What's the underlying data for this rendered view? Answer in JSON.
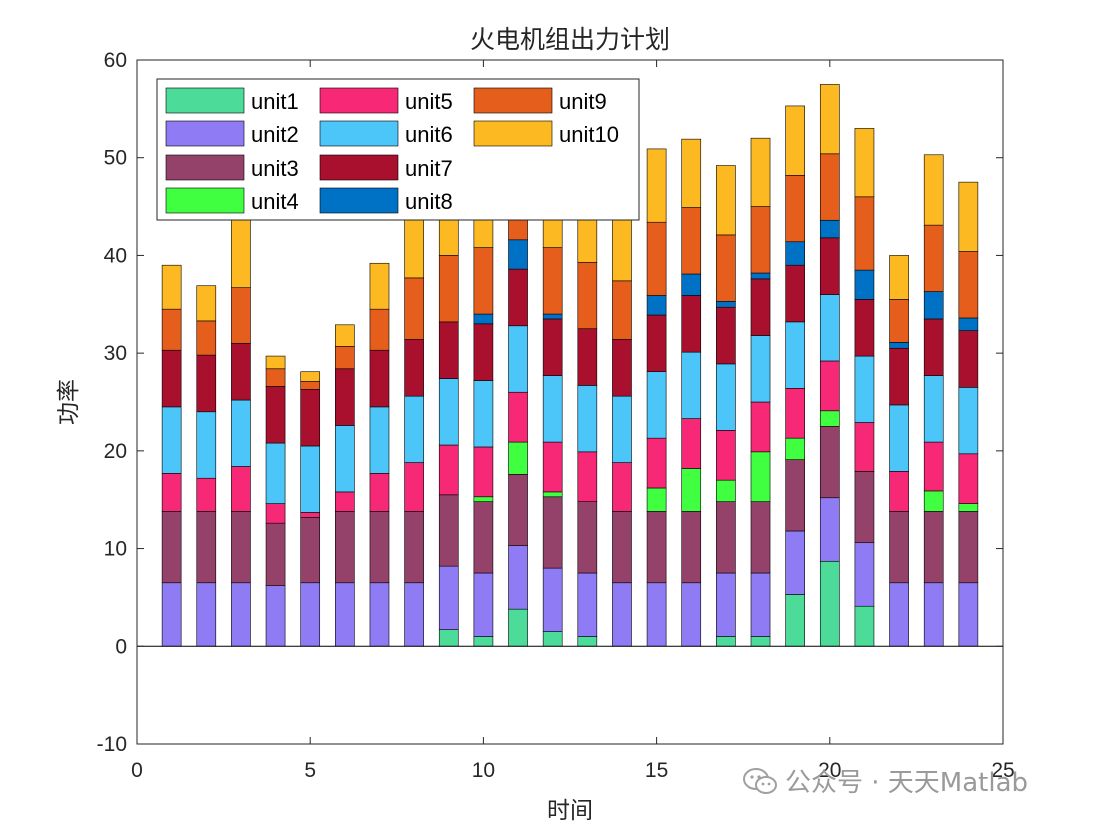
{
  "chart_data": {
    "type": "bar",
    "stacked": true,
    "title": "火电机组出力计划",
    "xlabel": "时间",
    "ylabel": "功率",
    "xlim": [
      0,
      25
    ],
    "ylim": [
      -10,
      60
    ],
    "xticks": [
      0,
      5,
      10,
      15,
      20,
      25
    ],
    "yticks": [
      -10,
      0,
      10,
      20,
      30,
      40,
      50,
      60
    ],
    "legend_position": "top-left",
    "legend_columns": 3,
    "categories": [
      1,
      2,
      3,
      4,
      5,
      6,
      7,
      8,
      9,
      10,
      11,
      12,
      13,
      14,
      15,
      16,
      17,
      18,
      19,
      20,
      21,
      22,
      23,
      24
    ],
    "series": [
      {
        "name": "unit1",
        "color": "#4DDB9A",
        "values": [
          0,
          0,
          0,
          0,
          0,
          0,
          0,
          0,
          1.7,
          1,
          3.8,
          1.5,
          1,
          0,
          0,
          0,
          1,
          1,
          5.3,
          8.7,
          4.1,
          0,
          0,
          0
        ]
      },
      {
        "name": "unit2",
        "color": "#8F7CF5",
        "values": [
          6.5,
          6.5,
          6.5,
          6.2,
          6.5,
          6.5,
          6.5,
          6.5,
          6.5,
          6.5,
          6.5,
          6.5,
          6.5,
          6.5,
          6.5,
          6.5,
          6.5,
          6.5,
          6.5,
          6.5,
          6.5,
          6.5,
          6.5,
          6.5
        ]
      },
      {
        "name": "unit3",
        "color": "#94426A",
        "values": [
          7.3,
          7.3,
          7.3,
          6.4,
          6.7,
          7.3,
          7.3,
          7.3,
          7.3,
          7.3,
          7.3,
          7.3,
          7.3,
          7.3,
          7.3,
          7.3,
          7.3,
          7.3,
          7.3,
          7.3,
          7.3,
          7.3,
          7.3,
          7.3
        ]
      },
      {
        "name": "unit4",
        "color": "#40FF40",
        "values": [
          0,
          0,
          0,
          0,
          0,
          0,
          0,
          0,
          0,
          0.5,
          3.3,
          0.5,
          0,
          0,
          2.4,
          4.4,
          2.2,
          5.1,
          2.2,
          1.6,
          0,
          0,
          2.1,
          0.8
        ]
      },
      {
        "name": "unit5",
        "color": "#F72876",
        "values": [
          3.9,
          3.4,
          4.6,
          2,
          0.5,
          2,
          3.9,
          5,
          5.1,
          5.1,
          5.1,
          5.1,
          5.1,
          5,
          5.1,
          5.1,
          5.1,
          5.1,
          5.1,
          5.1,
          5,
          4.1,
          5,
          5.1
        ]
      },
      {
        "name": "unit6",
        "color": "#4CC6F8",
        "values": [
          6.8,
          6.8,
          6.8,
          6.2,
          6.8,
          6.8,
          6.8,
          6.8,
          6.8,
          6.8,
          6.8,
          6.8,
          6.8,
          6.8,
          6.8,
          6.8,
          6.8,
          6.8,
          6.8,
          6.8,
          6.8,
          6.8,
          6.8,
          6.8
        ]
      },
      {
        "name": "unit7",
        "color": "#A8102E",
        "values": [
          5.8,
          5.8,
          5.8,
          5.8,
          5.8,
          5.8,
          5.8,
          5.8,
          5.8,
          5.8,
          5.8,
          5.8,
          5.8,
          5.8,
          5.8,
          5.8,
          5.8,
          5.8,
          5.8,
          5.8,
          5.8,
          5.8,
          5.8,
          5.8
        ]
      },
      {
        "name": "unit8",
        "color": "#0072C6",
        "values": [
          0,
          0,
          0,
          0,
          0,
          0,
          0,
          0,
          0,
          1,
          3,
          0.5,
          0,
          0,
          2,
          2.2,
          0.6,
          0.6,
          2.4,
          1.8,
          3,
          0.6,
          2.8,
          1.3
        ]
      },
      {
        "name": "unit9",
        "color": "#E65E1B",
        "values": [
          4.2,
          3.5,
          5.7,
          1.8,
          0.8,
          2.3,
          4.2,
          6.3,
          6.8,
          6.8,
          6.8,
          6.8,
          6.8,
          6,
          7.5,
          6.8,
          6.8,
          6.8,
          6.8,
          6.8,
          7.5,
          4.4,
          6.8,
          6.8
        ]
      },
      {
        "name": "unit10",
        "color": "#FDB921",
        "values": [
          4.5,
          3.6,
          7,
          1.3,
          1,
          2.2,
          4.7,
          6,
          7.5,
          7.4,
          7.5,
          7.4,
          7.3,
          6.5,
          7.5,
          7,
          7.1,
          7,
          7.1,
          7.1,
          7,
          4.5,
          7.2,
          7.1
        ]
      }
    ]
  },
  "watermark": {
    "text": "公众号 · 天天Matlab",
    "icon": "wechat-icon"
  }
}
